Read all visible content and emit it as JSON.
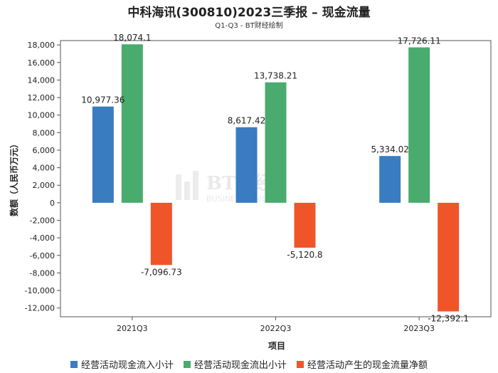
{
  "chart_data": {
    "type": "bar",
    "title": "中科海讯(300810)2023三季报 – 现金流量",
    "subtitle": "Q1-Q3 - BT财经绘制",
    "xlabel": "项目",
    "ylabel": "数额（人民币万元）",
    "categories": [
      "2021Q3",
      "2022Q3",
      "2023Q3"
    ],
    "ylim": [
      -13000,
      18500
    ],
    "yticks": [
      -12000,
      -10000,
      -8000,
      -6000,
      -4000,
      -2000,
      0,
      2000,
      4000,
      6000,
      8000,
      10000,
      12000,
      14000,
      16000,
      18000
    ],
    "ytick_labels": [
      "-12,000",
      "-10,000",
      "-8,000",
      "-6,000",
      "-4,000",
      "-2,000",
      "0",
      "2,000",
      "4,000",
      "6,000",
      "8,000",
      "10,000",
      "12,000",
      "14,000",
      "16,000",
      "18,000"
    ],
    "series": [
      {
        "name": "经营活动现金流入小计",
        "color": "#3a7cc0",
        "values": [
          10977.36,
          8617.42,
          5334.02
        ],
        "labels": [
          "10,977.36",
          "8,617.42",
          "5,334.02"
        ]
      },
      {
        "name": "经营活动现金流出小计",
        "color": "#4aab6e",
        "values": [
          18074.1,
          13738.21,
          17726.11
        ],
        "labels": [
          "18,074.1",
          "13,738.21",
          "17,726.11"
        ]
      },
      {
        "name": "经营活动产生的现金流量净额",
        "color": "#f0552a",
        "values": [
          -7096.73,
          -5120.8,
          -12392.1
        ],
        "labels": [
          "-7,096.73",
          "-5,120.8",
          "-12,392.1"
        ]
      }
    ],
    "grid": false,
    "legend_position": "bottom",
    "watermark": "BT财经 BUSINESS TIMES"
  }
}
